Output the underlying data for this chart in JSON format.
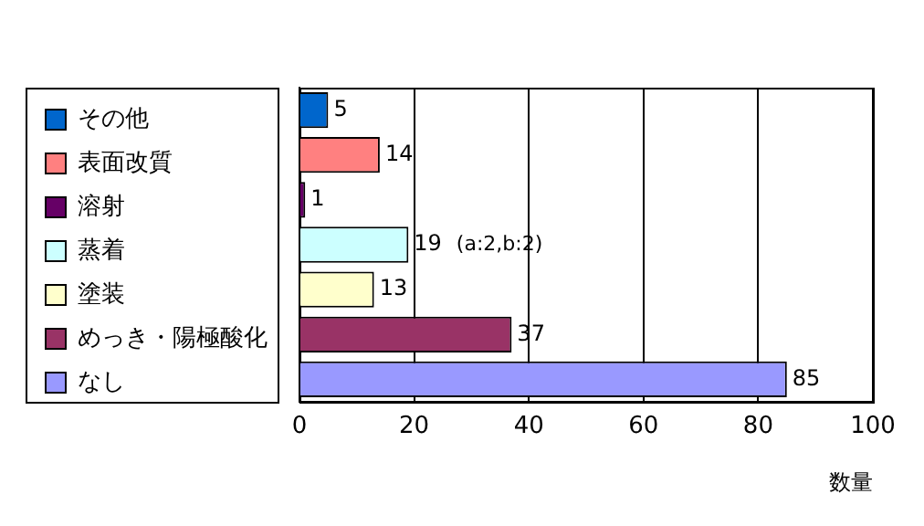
{
  "chart_data": {
    "type": "bar",
    "orientation": "horizontal",
    "stacked": true,
    "categories": [
      null,
      null,
      null,
      null,
      null,
      null,
      null
    ],
    "series": [
      {
        "name": "その他",
        "color": "#0066cc",
        "values": [
          5,
          null,
          null,
          null,
          null,
          null,
          null
        ]
      },
      {
        "name": "表面改質",
        "color": "#ff8080",
        "values": [
          null,
          14,
          null,
          null,
          null,
          null,
          null
        ]
      },
      {
        "name": "溶射",
        "color": "#660066",
        "values": [
          null,
          null,
          1,
          null,
          null,
          null,
          null
        ]
      },
      {
        "name": "蒸着",
        "color": "#ccffff",
        "values": [
          null,
          null,
          null,
          19,
          null,
          null,
          null
        ]
      },
      {
        "name": "塗装",
        "color": "#ffffcc",
        "values": [
          null,
          null,
          null,
          null,
          13,
          null,
          null
        ]
      },
      {
        "name": "めっき・陽極酸化",
        "color": "#993366",
        "values": [
          null,
          null,
          null,
          null,
          null,
          37,
          null
        ]
      },
      {
        "name": "なし",
        "color": "#9999ff",
        "values": [
          null,
          null,
          null,
          null,
          null,
          null,
          85
        ]
      }
    ],
    "xlim": [
      0,
      100
    ],
    "xticks": [
      0,
      20,
      40,
      60,
      80,
      100
    ],
    "xlabel": "数量",
    "grid": "x",
    "legend": "left",
    "tick_labels": "x",
    "data_labels": true,
    "annotations": [
      {
        "text": "(a:2,b:2)",
        "x": 19
      }
    ]
  }
}
